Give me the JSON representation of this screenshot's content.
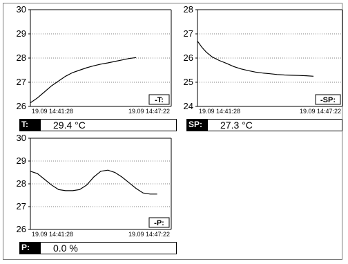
{
  "chart_data": [
    {
      "type": "line",
      "tag": "-T:",
      "ylim": [
        26,
        30
      ],
      "yticks": [
        "26",
        "27",
        "28",
        "29",
        "30"
      ],
      "x_start_label": "19.09 14:41:28",
      "x_end_label": "19.09 14:47:22",
      "x_range": [
        "19.09 14:41:28",
        "19.09 14:47:22"
      ],
      "grid": true,
      "series": [
        {
          "x": [
            0,
            0.05,
            0.1,
            0.15,
            0.2,
            0.25,
            0.3,
            0.35,
            0.4,
            0.45,
            0.5,
            0.55,
            0.6,
            0.65,
            0.7,
            0.75
          ],
          "y": [
            26.15,
            26.35,
            26.6,
            26.85,
            27.05,
            27.25,
            27.4,
            27.5,
            27.6,
            27.68,
            27.75,
            27.8,
            27.86,
            27.92,
            27.98,
            28.02
          ]
        }
      ],
      "readout": {
        "label": "T:",
        "value": "29.4 °C"
      }
    },
    {
      "type": "line",
      "tag": "-SP:",
      "ylim": [
        24,
        28
      ],
      "yticks": [
        "24",
        "25",
        "26",
        "27",
        "28"
      ],
      "x_start_label": "19.09 14:41:28",
      "x_end_label": "19.09 14:47:22",
      "x_range": [
        "19.09 14:41:28",
        "19.09 14:47:22"
      ],
      "grid": true,
      "series": [
        {
          "x": [
            0,
            0.03,
            0.06,
            0.1,
            0.15,
            0.2,
            0.25,
            0.3,
            0.35,
            0.4,
            0.45,
            0.5,
            0.55,
            0.6,
            0.65,
            0.7,
            0.75,
            0.8
          ],
          "y": [
            26.7,
            26.45,
            26.25,
            26.05,
            25.9,
            25.78,
            25.65,
            25.55,
            25.48,
            25.42,
            25.38,
            25.35,
            25.32,
            25.3,
            25.29,
            25.28,
            25.27,
            25.25
          ]
        }
      ],
      "readout": {
        "label": "SP:",
        "value": "27.3 °C"
      }
    },
    {
      "type": "line",
      "tag": "-P:",
      "ylim": [
        26,
        30
      ],
      "yticks": [
        "26",
        "27",
        "28",
        "29",
        "30"
      ],
      "x_start_label": "19.09 14:41:28",
      "x_end_label": "19.09 14:47:22",
      "x_range": [
        "19.09 14:41:28",
        "19.09 14:47:22"
      ],
      "grid": true,
      "series": [
        {
          "x": [
            0,
            0.05,
            0.1,
            0.15,
            0.2,
            0.25,
            0.3,
            0.35,
            0.4,
            0.45,
            0.5,
            0.55,
            0.6,
            0.65,
            0.7,
            0.75,
            0.8,
            0.85,
            0.9
          ],
          "y": [
            28.55,
            28.45,
            28.2,
            27.95,
            27.75,
            27.7,
            27.7,
            27.75,
            27.95,
            28.3,
            28.55,
            28.6,
            28.5,
            28.3,
            28.05,
            27.8,
            27.6,
            27.55,
            27.55
          ]
        }
      ],
      "readout": {
        "label": "P:",
        "value": "0.0 %"
      }
    }
  ]
}
